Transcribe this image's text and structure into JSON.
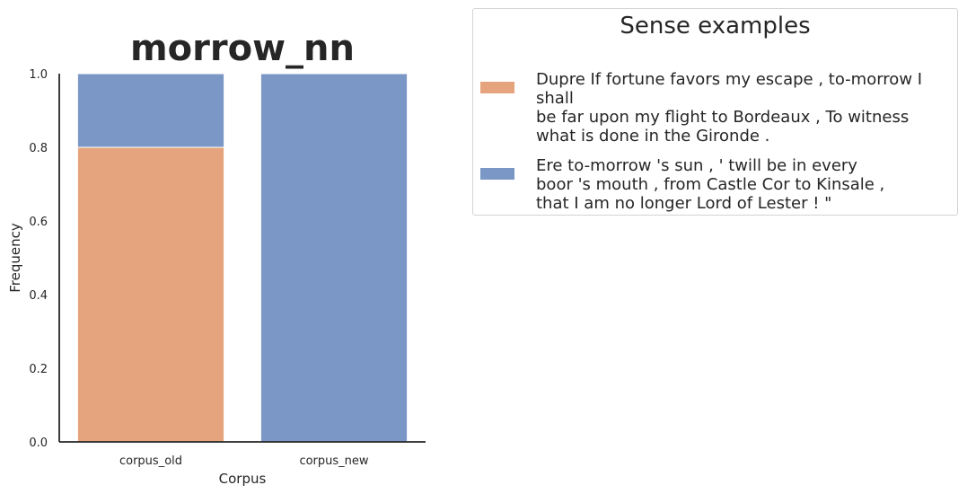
{
  "chart_data": {
    "type": "bar",
    "stacked": true,
    "title": "morrow_nn",
    "xlabel": "Corpus",
    "ylabel": "Frequency",
    "ylim": [
      0,
      1.0
    ],
    "yticks": [
      "0.0",
      "0.2",
      "0.4",
      "0.6",
      "0.8",
      "1.0"
    ],
    "categories": [
      "corpus_old",
      "corpus_new"
    ],
    "series": [
      {
        "color": "#e5a47d",
        "values": [
          0.8,
          0.0
        ]
      },
      {
        "color": "#7b97c6",
        "values": [
          0.2,
          1.0
        ]
      }
    ],
    "legend": {
      "title": "Sense examples",
      "placement": "outside-right",
      "entries": [
        {
          "color": "#e5a47d",
          "lines": [
            "Dupre If fortune favors my escape , to-morrow I shall",
            "be far upon my flight to Bordeaux , To witness",
            "what is done in the Gironde ."
          ]
        },
        {
          "color": "#7b97c6",
          "lines": [
            "Ere to-morrow 's sun , ' twill be in every",
            "boor 's mouth , from Castle Cor to Kinsale ,",
            "that I am no longer Lord of Lester ! \""
          ]
        }
      ]
    }
  }
}
